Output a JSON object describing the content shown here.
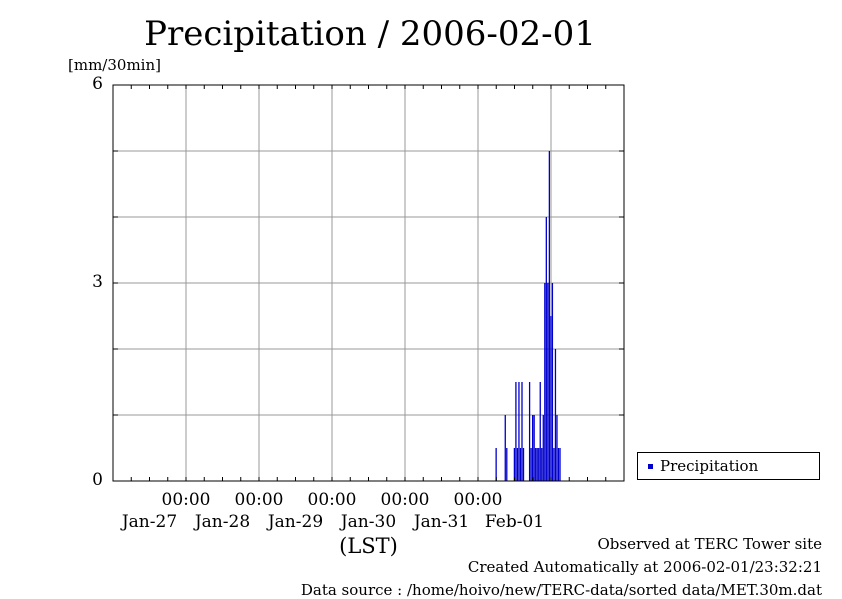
{
  "chart_data": {
    "type": "bar",
    "title": "Precipitation / 2006-02-01",
    "ylabel": "[mm/30min]",
    "xlabel": "(LST)",
    "ylim": [
      0,
      6
    ],
    "yticks": [
      "0",
      "3",
      "6"
    ],
    "xlim": [
      "2006-01-26T00:00",
      "2006-02-02T00:00"
    ],
    "xticks": [
      {
        "time": "00:00",
        "date": "Jan-27",
        "x": "2006-01-27T00:00"
      },
      {
        "time": "00:00",
        "date": "Jan-28",
        "x": "2006-01-28T00:00"
      },
      {
        "time": "00:00",
        "date": "Jan-29",
        "x": "2006-01-29T00:00"
      },
      {
        "time": "00:00",
        "date": "Jan-30",
        "x": "2006-01-30T00:00"
      },
      {
        "time": "00:00",
        "date": "Jan-31",
        "x": "2006-01-31T00:00"
      },
      {
        "time": "",
        "date": "Feb-01",
        "x": "2006-02-01T00:00"
      }
    ],
    "grid": true,
    "legend_position": "bottom-right-outside",
    "series": [
      {
        "name": "Precipitation",
        "color": "#0000cc",
        "points": [
          {
            "x": "2006-01-31T06:00",
            "y": 0.5
          },
          {
            "x": "2006-01-31T09:00",
            "y": 1.0
          },
          {
            "x": "2006-01-31T09:30",
            "y": 0.5
          },
          {
            "x": "2006-01-31T12:00",
            "y": 0.5
          },
          {
            "x": "2006-01-31T12:30",
            "y": 1.5
          },
          {
            "x": "2006-01-31T13:00",
            "y": 0.5
          },
          {
            "x": "2006-01-31T13:30",
            "y": 1.5
          },
          {
            "x": "2006-01-31T14:00",
            "y": 0.5
          },
          {
            "x": "2006-01-31T14:30",
            "y": 1.5
          },
          {
            "x": "2006-01-31T15:00",
            "y": 0.5
          },
          {
            "x": "2006-01-31T17:00",
            "y": 1.5
          },
          {
            "x": "2006-01-31T17:30",
            "y": 0.5
          },
          {
            "x": "2006-01-31T18:00",
            "y": 1.0
          },
          {
            "x": "2006-01-31T18:30",
            "y": 1.0
          },
          {
            "x": "2006-01-31T19:00",
            "y": 0.5
          },
          {
            "x": "2006-01-31T19:30",
            "y": 0.5
          },
          {
            "x": "2006-01-31T20:00",
            "y": 0.5
          },
          {
            "x": "2006-01-31T20:30",
            "y": 1.5
          },
          {
            "x": "2006-01-31T21:00",
            "y": 0.5
          },
          {
            "x": "2006-01-31T21:30",
            "y": 1.0
          },
          {
            "x": "2006-01-31T22:00",
            "y": 3.0
          },
          {
            "x": "2006-01-31T22:30",
            "y": 4.0
          },
          {
            "x": "2006-01-31T23:00",
            "y": 3.0
          },
          {
            "x": "2006-01-31T23:30",
            "y": 5.0
          },
          {
            "x": "2006-02-01T00:00",
            "y": 2.5
          },
          {
            "x": "2006-02-01T00:30",
            "y": 3.0
          },
          {
            "x": "2006-02-01T01:00",
            "y": 0.5
          },
          {
            "x": "2006-02-01T01:30",
            "y": 2.0
          },
          {
            "x": "2006-02-01T02:00",
            "y": 1.0
          },
          {
            "x": "2006-02-01T02:30",
            "y": 0.5
          },
          {
            "x": "2006-02-01T03:00",
            "y": 0.5
          }
        ]
      }
    ]
  },
  "legend": {
    "label": "Precipitation"
  },
  "footer": {
    "observed": "Observed at TERC Tower site",
    "created": "Created Automatically at 2006-02-01/23:32:21",
    "source": "Data source : /home/hoivo/new/TERC-data/sorted  data/MET.30m.dat"
  }
}
